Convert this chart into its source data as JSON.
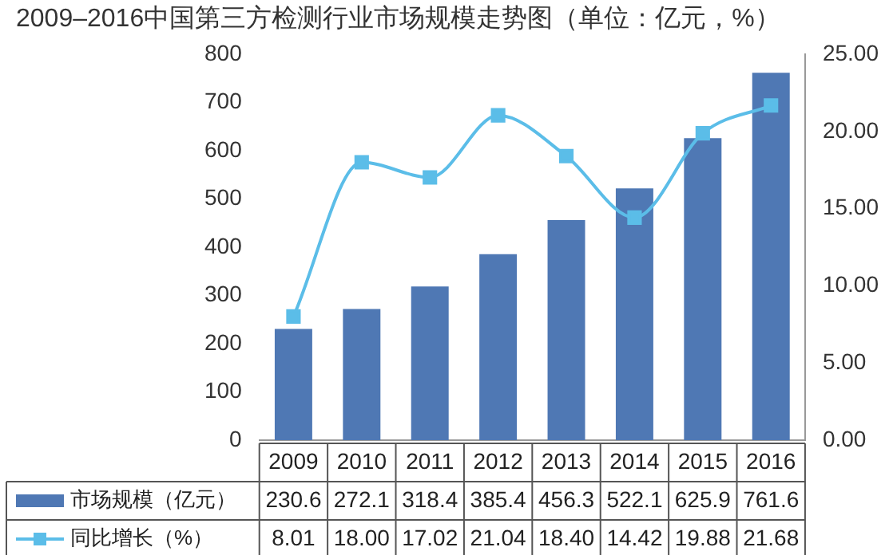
{
  "chart_data": {
    "type": "bar",
    "title": "2009–2016中国第三方检测行业市场规模走势图（单位：亿元，%）",
    "categories": [
      "2009",
      "2010",
      "2011",
      "2012",
      "2013",
      "2014",
      "2015",
      "2016"
    ],
    "series": [
      {
        "name": "市场规模（亿元）",
        "type": "bar",
        "color": "#4f78b4",
        "values": [
          230.6,
          272.1,
          318.4,
          385.4,
          456.3,
          522.1,
          625.9,
          761.6
        ],
        "value_labels": [
          "230.6",
          "272.1",
          "318.4",
          "385.4",
          "456.3",
          "522.1",
          "625.9",
          "761.6"
        ]
      },
      {
        "name": "同比增长（%）",
        "type": "line",
        "axis": "y2",
        "color": "#5bbde8",
        "marker": "square",
        "values": [
          8.01,
          18.0,
          17.02,
          21.04,
          18.4,
          14.42,
          19.88,
          21.68
        ],
        "value_labels": [
          "8.01",
          "18.00",
          "17.02",
          "21.04",
          "18.40",
          "14.42",
          "19.88",
          "21.68"
        ]
      }
    ],
    "ylim": [
      0,
      800
    ],
    "yticks": [
      0,
      100,
      200,
      300,
      400,
      500,
      600,
      700,
      800
    ],
    "y2lim": [
      0,
      25
    ],
    "y2ticks": [
      {
        "value": 0,
        "label": "0.00"
      },
      {
        "value": 5,
        "label": "5.00"
      },
      {
        "value": 10,
        "label": "10.00"
      },
      {
        "value": 15,
        "label": "15.00"
      },
      {
        "value": 20,
        "label": "20.00"
      },
      {
        "value": 25,
        "label": "25.00"
      }
    ],
    "grid": false,
    "legend": "bottom"
  }
}
